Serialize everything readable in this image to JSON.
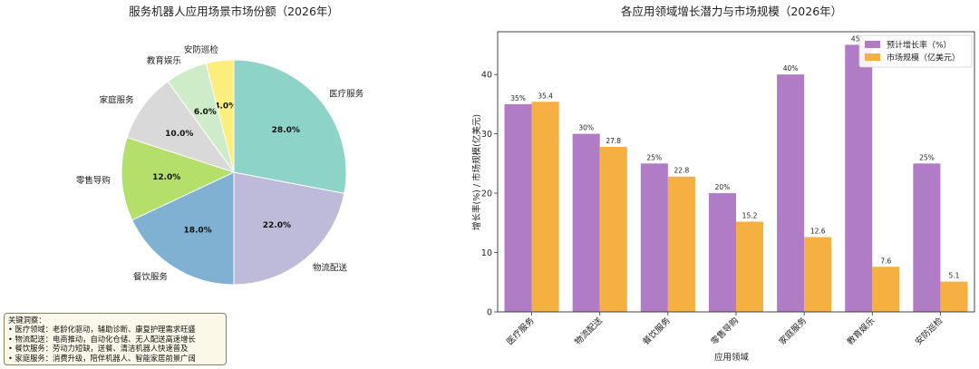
{
  "chart_data": [
    {
      "type": "pie",
      "title": "服务机器人应用场景市场份额（2026年）",
      "slices": [
        {
          "label": "安防巡检",
          "value": 4.0,
          "display": "4.0%",
          "color": "#fbee7c"
        },
        {
          "label": "教育娱乐",
          "value": 6.0,
          "display": "6.0%",
          "color": "#cfecc8"
        },
        {
          "label": "家庭服务",
          "value": 10.0,
          "display": "10.0%",
          "color": "#d9d9d9"
        },
        {
          "label": "零售导购",
          "value": 12.0,
          "display": "12.0%",
          "color": "#b3df6a"
        },
        {
          "label": "餐饮服务",
          "value": 18.0,
          "display": "18.0%",
          "color": "#80b1d3"
        },
        {
          "label": "物流配送",
          "value": 22.0,
          "display": "22.0%",
          "color": "#bebada"
        },
        {
          "label": "医疗服务",
          "value": 28.0,
          "display": "28.0%",
          "color": "#8dd3c7"
        }
      ]
    },
    {
      "type": "bar",
      "title": "各应用领域增长潜力与市场规模（2026年）",
      "xlabel": "应用领域",
      "ylabel": "增长率(%) / 市场规模(亿美元)",
      "ylim": [
        0,
        47.2
      ],
      "yticks": [
        0,
        10,
        20,
        30,
        40
      ],
      "categories": [
        "医疗服务",
        "物流配送",
        "餐饮服务",
        "零售导购",
        "家庭服务",
        "教育娱乐",
        "安防巡检"
      ],
      "series": [
        {
          "name": "预计增长率（%）",
          "color": "#b07cc6",
          "values": [
            35,
            30,
            25,
            20,
            40,
            45,
            25
          ],
          "labels": [
            "35%",
            "30%",
            "25%",
            "20%",
            "40%",
            "45%",
            "25%"
          ]
        },
        {
          "name": "市场规模（亿美元）",
          "color": "#f5b041",
          "values": [
            35.4,
            27.8,
            22.8,
            15.2,
            12.6,
            7.6,
            5.1
          ],
          "labels": [
            "35.4",
            "27.8",
            "22.8",
            "15.2",
            "12.6",
            "7.6",
            "5.1"
          ]
        }
      ],
      "legend": "top-right"
    }
  ],
  "insights": {
    "title": "关键洞察：",
    "lines": [
      "• 医疗领域：老龄化驱动，辅助诊断、康复护理需求旺盛",
      "• 物流配送：电商推动，自动化仓储、无人配送高速增长",
      "• 餐饮服务：劳动力短缺，送餐、清洁机器人快速普及",
      "• 家庭服务：消费升级，陪伴机器人、智能家居前景广阔"
    ]
  }
}
